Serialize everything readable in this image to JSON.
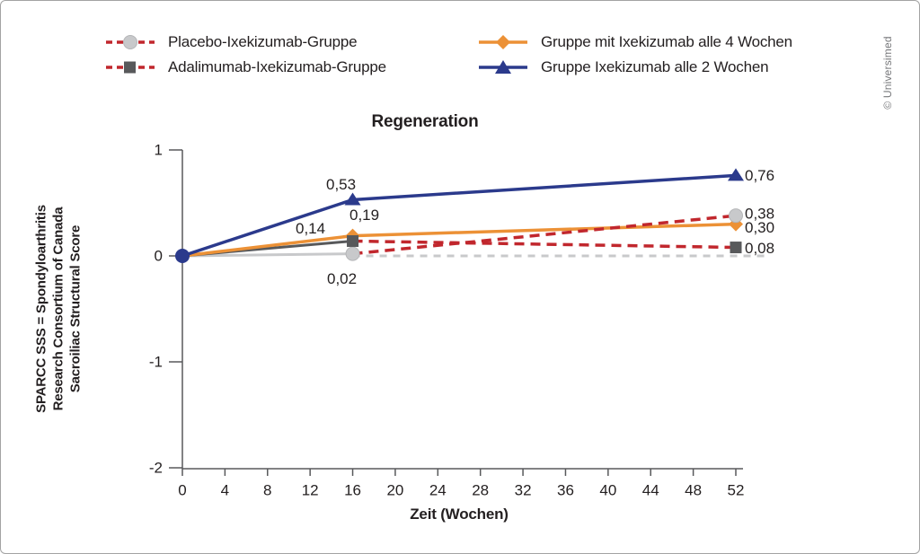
{
  "frame": {
    "copyright": "© Universimed"
  },
  "chart_data": {
    "type": "line",
    "title": "Regeneration",
    "xlabel": "Zeit (Wochen)",
    "ylabel": "SPARCC SSS = Spondyloarthritis Research Consortium of Canada Sacroiliac Structural Score",
    "ylabel_lines": [
      "SPARCC SSS = Spondyloarthritis",
      "Research Consortium of Canada",
      "Sacroiliac Structural Score"
    ],
    "xlim": [
      0,
      52
    ],
    "ylim": [
      -2,
      1
    ],
    "xticks": [
      0,
      4,
      8,
      12,
      16,
      20,
      24,
      28,
      32,
      36,
      40,
      44,
      48,
      52
    ],
    "yticks": [
      1,
      0,
      -1,
      -2
    ],
    "grid": false,
    "legend_position": "top",
    "zero_line": {
      "y": 0,
      "x_start": 16,
      "x_end": 52,
      "color": "#c8c9cb",
      "style": "dashed"
    },
    "series": [
      {
        "name": "Placebo-Ixekizumab-Gruppe",
        "marker": "circle",
        "marker_color": "#c8c9cb",
        "segments": [
          {
            "style": "solid",
            "color": "#c8c9cb",
            "width": 3,
            "points": [
              [
                0,
                0
              ],
              [
                16,
                0.02
              ]
            ]
          },
          {
            "style": "dashed",
            "color": "#c1272d",
            "width": 3.5,
            "points": [
              [
                16,
                0.02
              ],
              [
                52,
                0.38
              ]
            ]
          }
        ],
        "markers_at": [
          [
            16,
            0.02
          ],
          [
            52,
            0.38
          ]
        ],
        "point_labels": [
          {
            "text": "0,02",
            "x": 16,
            "y": 0.02,
            "dx": -12,
            "dy": 28,
            "anchor": "middle"
          },
          {
            "text": "0,38",
            "x": 52,
            "y": 0.38,
            "dx": 10,
            "dy": -2,
            "anchor": "start"
          }
        ]
      },
      {
        "name": "Adalimumab-Ixekizumab-Gruppe",
        "marker": "square",
        "marker_color": "#58595b",
        "segments": [
          {
            "style": "solid",
            "color": "#58595b",
            "width": 3,
            "points": [
              [
                0,
                0
              ],
              [
                16,
                0.14
              ]
            ]
          },
          {
            "style": "dashed",
            "color": "#c1272d",
            "width": 3.5,
            "points": [
              [
                16,
                0.14
              ],
              [
                52,
                0.08
              ]
            ]
          }
        ],
        "markers_at": [
          [
            16,
            0.14
          ],
          [
            52,
            0.08
          ]
        ],
        "point_labels": [
          {
            "text": "0,14",
            "x": 16,
            "y": 0.14,
            "dx": -47,
            "dy": -14,
            "anchor": "middle"
          },
          {
            "text": "0,08",
            "x": 52,
            "y": 0.08,
            "dx": 10,
            "dy": 1,
            "anchor": "start"
          }
        ]
      },
      {
        "name": "Gruppe mit Ixekizumab alle 4 Wochen",
        "marker": "diamond",
        "marker_color": "#ec9136",
        "segments": [
          {
            "style": "solid",
            "color": "#ec9136",
            "width": 3.5,
            "points": [
              [
                0,
                0
              ],
              [
                16,
                0.19
              ],
              [
                52,
                0.3
              ]
            ]
          }
        ],
        "markers_at": [
          [
            16,
            0.19
          ],
          [
            52,
            0.3
          ]
        ],
        "point_labels": [
          {
            "text": "0,19",
            "x": 16,
            "y": 0.19,
            "dx": 13,
            "dy": -23,
            "anchor": "middle"
          },
          {
            "text": "0,30",
            "x": 52,
            "y": 0.3,
            "dx": 10,
            "dy": 4,
            "anchor": "start"
          }
        ]
      },
      {
        "name": "Gruppe Ixekizumab alle 2 Wochen",
        "marker": "triangle",
        "marker_color": "#2b3a8c",
        "origin_marker": {
          "shape": "circle",
          "x": 0,
          "y": 0,
          "color": "#2b3a8c"
        },
        "segments": [
          {
            "style": "solid",
            "color": "#2b3a8c",
            "width": 3.5,
            "points": [
              [
                0,
                0
              ],
              [
                16,
                0.53
              ],
              [
                52,
                0.76
              ]
            ]
          }
        ],
        "markers_at": [
          [
            16,
            0.53
          ],
          [
            52,
            0.76
          ]
        ],
        "point_labels": [
          {
            "text": "0,53",
            "x": 16,
            "y": 0.53,
            "dx": -13,
            "dy": -17,
            "anchor": "middle"
          },
          {
            "text": "0,76",
            "x": 52,
            "y": 0.76,
            "dx": 10,
            "dy": 0,
            "anchor": "start"
          }
        ]
      }
    ],
    "colors": {
      "dashed_red": "#c1272d",
      "axis": "#58595b",
      "text": "#231f20"
    }
  }
}
